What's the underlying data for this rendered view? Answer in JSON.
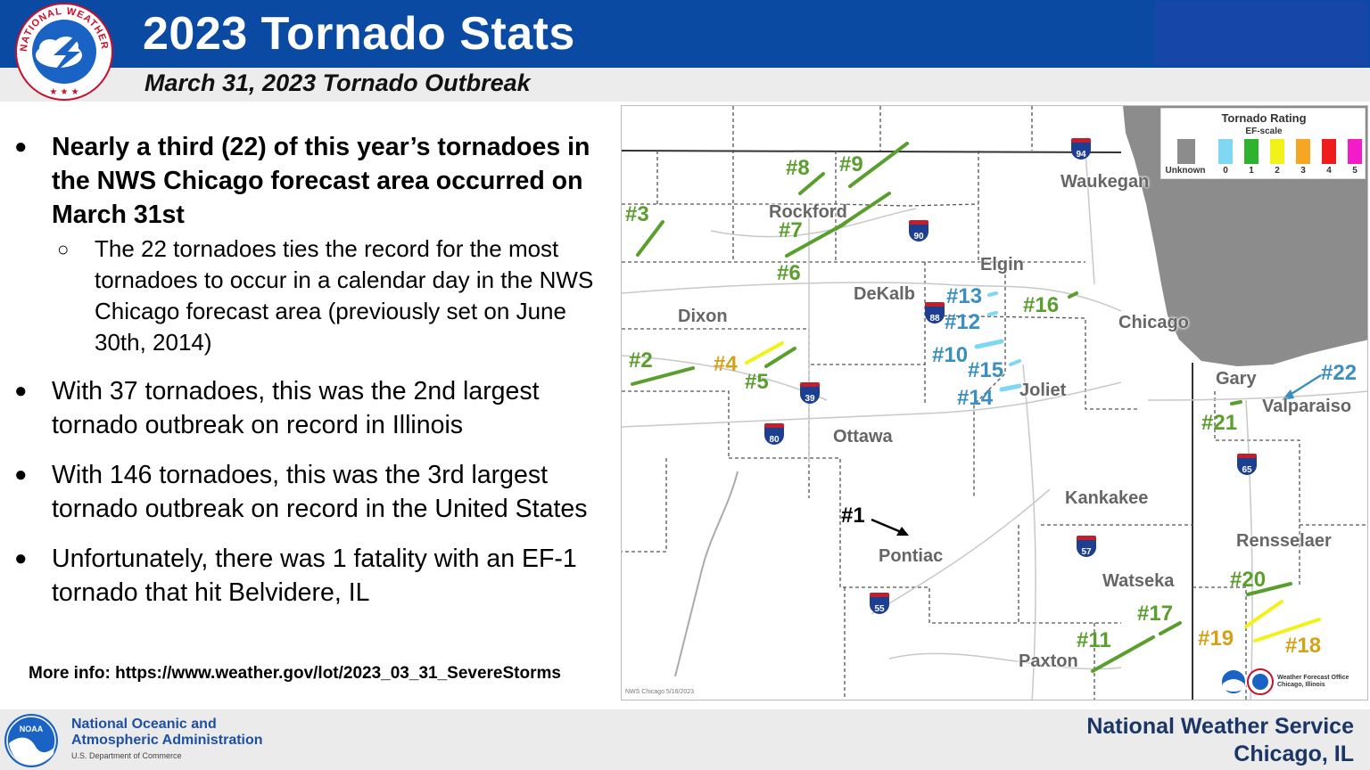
{
  "header": {
    "title": "2023 Tornado Stats",
    "subtitle": "March 31, 2023 Tornado Outbreak",
    "logo_text": "NATIONAL WEATHER SERVICE"
  },
  "bullets": [
    {
      "text": "Nearly a third (22) of this year’s tornadoes in the NWS Chicago forecast area occurred on March 31st",
      "bold": true,
      "sub": [
        "The 22 tornadoes ties the record for the most tornadoes to occur in a calendar day in the NWS Chicago forecast area (previously set on June 30th, 2014)"
      ]
    },
    {
      "text": "With 37 tornadoes, this was the 2nd largest tornado outbreak on record in Illinois"
    },
    {
      "text": "With 146 tornadoes, this was the 3rd largest tornado outbreak on record in the United States"
    },
    {
      "text": "Unfortunately, there was 1 fatality with an EF-1 tornado that hit Belvidere, IL"
    }
  ],
  "more_info": "More info: https://www.weather.gov/lot/2023_03_31_SevereStorms",
  "map": {
    "legend": {
      "title": "Tornado Rating",
      "subtitle": "EF-scale",
      "items": [
        {
          "label": "Unknown",
          "color": "#8c8c8c"
        },
        {
          "label": "0",
          "color": "#7fd7f4"
        },
        {
          "label": "1",
          "color": "#2fb32f"
        },
        {
          "label": "2",
          "color": "#f2f21a"
        },
        {
          "label": "3",
          "color": "#f5a623"
        },
        {
          "label": "4",
          "color": "#ee1c1c"
        },
        {
          "label": "5",
          "color": "#f21dc8"
        }
      ]
    },
    "cities": [
      "Waukegan",
      "Rockford",
      "Elgin",
      "DeKalb",
      "Dixon",
      "Chicago",
      "Gary",
      "Joliet",
      "Valparaiso",
      "Ottawa",
      "Kankakee",
      "Pontiac",
      "Rensselaer",
      "Watseka",
      "Paxton"
    ],
    "interstates": [
      "94",
      "90",
      "88",
      "39",
      "80",
      "65",
      "57",
      "55"
    ],
    "tornadoes": [
      {
        "label": "#1",
        "rating": "unknown"
      },
      {
        "label": "#2",
        "rating": "EF1"
      },
      {
        "label": "#3",
        "rating": "EF1"
      },
      {
        "label": "#4",
        "rating": "EF2"
      },
      {
        "label": "#5",
        "rating": "EF1"
      },
      {
        "label": "#6",
        "rating": "EF1"
      },
      {
        "label": "#7",
        "rating": "EF1"
      },
      {
        "label": "#8",
        "rating": "EF1"
      },
      {
        "label": "#9",
        "rating": "EF1"
      },
      {
        "label": "#10",
        "rating": "EF0"
      },
      {
        "label": "#11",
        "rating": "EF1"
      },
      {
        "label": "#12",
        "rating": "EF0"
      },
      {
        "label": "#13",
        "rating": "EF0"
      },
      {
        "label": "#14",
        "rating": "EF0"
      },
      {
        "label": "#15",
        "rating": "EF0"
      },
      {
        "label": "#16",
        "rating": "EF1"
      },
      {
        "label": "#17",
        "rating": "EF1"
      },
      {
        "label": "#18",
        "rating": "EF2"
      },
      {
        "label": "#19",
        "rating": "EF2"
      },
      {
        "label": "#20",
        "rating": "EF1"
      },
      {
        "label": "#21",
        "rating": "EF1"
      },
      {
        "label": "#22",
        "rating": "EF0"
      }
    ],
    "office_text": "Weather Forecast Office Chicago, Illinois",
    "credit": "NWS Chicago 5/16/2023"
  },
  "colors": {
    "header": "#0b4aa2",
    "ef0": "#5cc3e8",
    "ef1": "#5a9e2e",
    "ef2": "#d4a21a",
    "ef0_text": "#3b8fc0"
  },
  "footer": {
    "noaa_line1": "National Oceanic and",
    "noaa_line2": "Atmospheric Administration",
    "noaa_dept": "U.S. Department of Commerce",
    "noaa_logo_text": "NOAA",
    "nws_line1": "National Weather Service",
    "nws_line2": "Chicago, IL"
  }
}
